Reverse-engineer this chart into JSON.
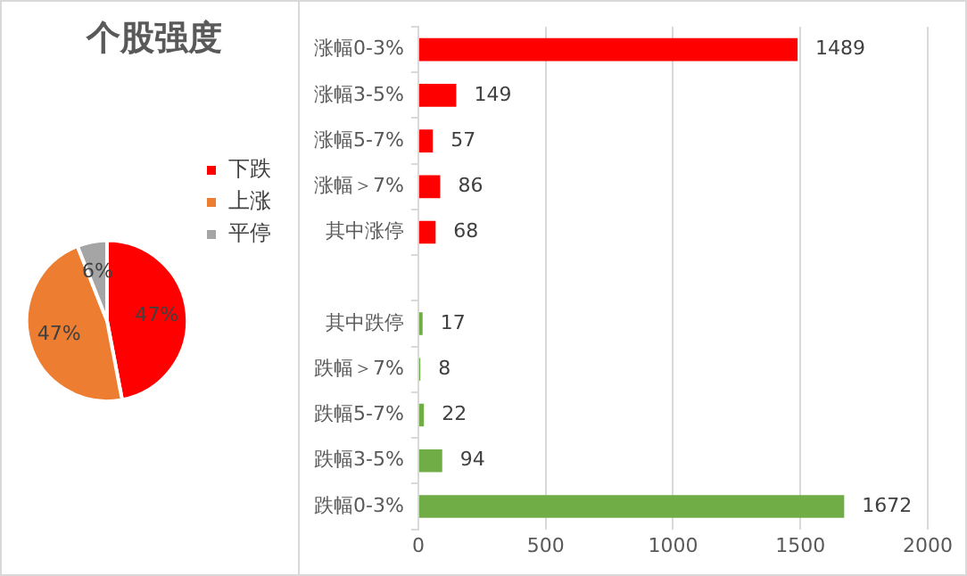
{
  "chart_data": [
    {
      "type": "pie",
      "title": "个股强度",
      "categories": [
        "下跌",
        "上涨",
        "平停"
      ],
      "values": [
        47,
        47,
        6
      ],
      "colors": [
        "#ff0000",
        "#ed7d31",
        "#a5a5a5"
      ],
      "value_labels": [
        "47%",
        "47%",
        "6%"
      ],
      "legend": "right"
    },
    {
      "type": "bar",
      "orientation": "horizontal",
      "categories": [
        "涨幅0-3%",
        "涨幅3-5%",
        "涨幅5-7%",
        "涨幅＞7%",
        "其中涨停",
        null,
        "其中跌停",
        "跌幅＞7%",
        "跌幅5-7%",
        "跌幅3-5%",
        "跌幅0-3%"
      ],
      "values": [
        1489,
        149,
        57,
        86,
        68,
        null,
        17,
        8,
        22,
        94,
        1672
      ],
      "colors": [
        "#ff0000",
        "#ff0000",
        "#ff0000",
        "#ff0000",
        "#ff0000",
        null,
        "#70ad47",
        "#70ad47",
        "#70ad47",
        "#70ad47",
        "#70ad47"
      ],
      "xlim": [
        0,
        2000
      ],
      "xticks": [
        0,
        500,
        1000,
        1500,
        2000
      ],
      "grid": "x",
      "data_labels": true,
      "legend": false
    }
  ]
}
